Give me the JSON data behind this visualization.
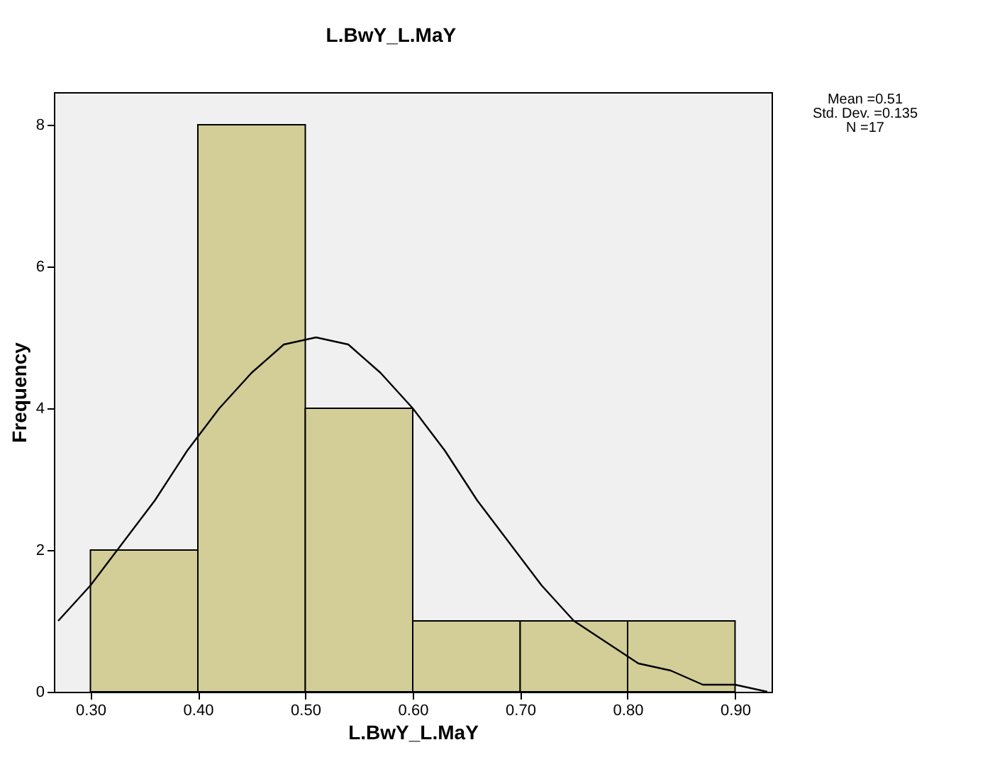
{
  "chart_data": {
    "type": "histogram",
    "title": "L.BwY_L.MaY",
    "xlabel": "L.BwY_L.MaY",
    "ylabel": "Frequency",
    "bins": [
      0.3,
      0.4,
      0.5,
      0.6,
      0.7,
      0.8,
      0.9
    ],
    "values": [
      2,
      8,
      4,
      1,
      1,
      1
    ],
    "color": "#d3ce97",
    "series": [
      {
        "type": "line",
        "color": "#000000",
        "x": [
          0.27,
          0.3,
          0.33,
          0.36,
          0.39,
          0.42,
          0.45,
          0.48,
          0.51,
          0.54,
          0.57,
          0.6,
          0.63,
          0.66,
          0.69,
          0.72,
          0.75,
          0.78,
          0.81,
          0.84,
          0.87,
          0.9,
          0.93
        ],
        "values": [
          1.0,
          1.5,
          2.1,
          2.7,
          3.4,
          4.0,
          4.5,
          4.9,
          5.0,
          4.9,
          4.5,
          4.0,
          3.4,
          2.7,
          2.1,
          1.5,
          1.0,
          0.7,
          0.4,
          0.3,
          0.1,
          0.1,
          0.0
        ]
      }
    ],
    "xlim": [
      0.266,
      0.934
    ],
    "xticks": [
      {
        "value": 0.3,
        "label": "0.30"
      },
      {
        "value": 0.4,
        "label": "0.40"
      },
      {
        "value": 0.5,
        "label": "0.50"
      },
      {
        "value": 0.6,
        "label": "0.60"
      },
      {
        "value": 0.7,
        "label": "0.70"
      },
      {
        "value": 0.8,
        "label": "0.80"
      },
      {
        "value": 0.9,
        "label": "0.90"
      }
    ],
    "ylim": [
      0,
      8.46
    ],
    "yticks": [
      0,
      2,
      4,
      6,
      8
    ],
    "grid": false,
    "annotations": [
      "Mean =0.51",
      "Std. Dev. =0.135",
      "N =17"
    ]
  }
}
